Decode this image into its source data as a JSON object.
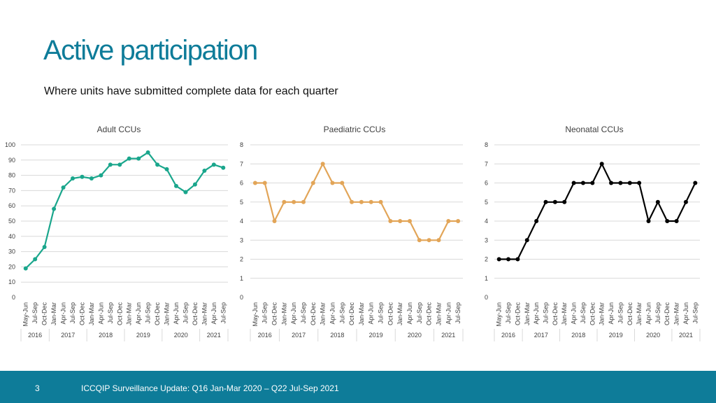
{
  "header": {
    "title": "Active participation",
    "subtitle": "Where units have submitted complete data for each quarter"
  },
  "footer": {
    "page_number": "3",
    "text": "ICCQIP Surveillance Update: Q16 Jan-Mar 2020 – Q22 Jul-Sep 2021"
  },
  "chart_data": [
    {
      "type": "line",
      "title": "Adult CCUs",
      "color": "#1aa68c",
      "ylim": [
        0,
        100
      ],
      "yticks": [
        0,
        10,
        20,
        30,
        40,
        50,
        60,
        70,
        80,
        90,
        100
      ],
      "grid": true,
      "categories": [
        "May-Jun",
        "Jul-Sep",
        "Oct-Dec",
        "Jan-Mar",
        "Apr-Jun",
        "Jul-Sep",
        "Oct-Dec",
        "Jan-Mar",
        "Apr-Jun",
        "Jul-Sep",
        "Oct-Dec",
        "Jan-Mar",
        "Apr-Jun",
        "Jul-Sep",
        "Oct-Dec",
        "Jan-Mar",
        "Apr-Jun",
        "Jul-Sep",
        "Oct-Dec",
        "Jan-Mar",
        "Apr-Jun",
        "Jul-Sep"
      ],
      "years": [
        {
          "label": "2016",
          "from": 0,
          "to": 2
        },
        {
          "label": "2017",
          "from": 3,
          "to": 6
        },
        {
          "label": "2018",
          "from": 7,
          "to": 10
        },
        {
          "label": "2019",
          "from": 11,
          "to": 14
        },
        {
          "label": "2020",
          "from": 15,
          "to": 18
        },
        {
          "label": "2021",
          "from": 19,
          "to": 21
        }
      ],
      "values": [
        19,
        25,
        33,
        58,
        72,
        78,
        79,
        78,
        80,
        87,
        87,
        91,
        91,
        95,
        87,
        84,
        73,
        69,
        74,
        83,
        87,
        85
      ]
    },
    {
      "type": "line",
      "title": "Paediatric CCUs",
      "color": "#e2a558",
      "ylim": [
        0,
        8
      ],
      "yticks": [
        0,
        1,
        2,
        3,
        4,
        5,
        6,
        7,
        8
      ],
      "grid": true,
      "categories": [
        "May-Jun",
        "Jul-Sep",
        "Oct-Dec",
        "Jan-Mar",
        "Apr-Jun",
        "Jul-Sep",
        "Oct-Dec",
        "Jan-Mar",
        "Apr-Jun",
        "Jul-Sep",
        "Oct-Dec",
        "Jan-Mar",
        "Apr-Jun",
        "Jul-Sep",
        "Oct-Dec",
        "Jan-Mar",
        "Apr-Jun",
        "Jul-Sep",
        "Oct-Dec",
        "Jan-Mar",
        "Apr-Jun",
        "Jul-Sep"
      ],
      "years": [
        {
          "label": "2016",
          "from": 0,
          "to": 2
        },
        {
          "label": "2017",
          "from": 3,
          "to": 6
        },
        {
          "label": "2018",
          "from": 7,
          "to": 10
        },
        {
          "label": "2019",
          "from": 11,
          "to": 14
        },
        {
          "label": "2020",
          "from": 15,
          "to": 18
        },
        {
          "label": "2021",
          "from": 19,
          "to": 21
        }
      ],
      "values": [
        6,
        6,
        4,
        5,
        5,
        5,
        6,
        7,
        6,
        6,
        5,
        5,
        5,
        5,
        4,
        4,
        4,
        3,
        3,
        3,
        4,
        4
      ]
    },
    {
      "type": "line",
      "title": "Neonatal CCUs",
      "color": "#000000",
      "ylim": [
        0,
        8
      ],
      "yticks": [
        0,
        1,
        2,
        3,
        4,
        5,
        6,
        7,
        8
      ],
      "grid": true,
      "categories": [
        "May-Jun",
        "Jul-Sep",
        "Oct-Dec",
        "Jan-Mar",
        "Apr-Jun",
        "Jul-Sep",
        "Oct-Dec",
        "Jan-Mar",
        "Apr-Jun",
        "Jul-Sep",
        "Oct-Dec",
        "Jan-Mar",
        "Apr-Jun",
        "Jul-Sep",
        "Oct-Dec",
        "Jan-Mar",
        "Apr-Jun",
        "Jul-Sep",
        "Oct-Dec",
        "Jan-Mar",
        "Apr-Jun",
        "Jul-Sep"
      ],
      "years": [
        {
          "label": "2016",
          "from": 0,
          "to": 2
        },
        {
          "label": "2017",
          "from": 3,
          "to": 6
        },
        {
          "label": "2018",
          "from": 7,
          "to": 10
        },
        {
          "label": "2019",
          "from": 11,
          "to": 14
        },
        {
          "label": "2020",
          "from": 15,
          "to": 18
        },
        {
          "label": "2021",
          "from": 19,
          "to": 21
        }
      ],
      "values": [
        2,
        2,
        2,
        3,
        4,
        5,
        5,
        5,
        6,
        6,
        6,
        7,
        6,
        6,
        6,
        6,
        4,
        5,
        4,
        4,
        5,
        6
      ]
    }
  ]
}
